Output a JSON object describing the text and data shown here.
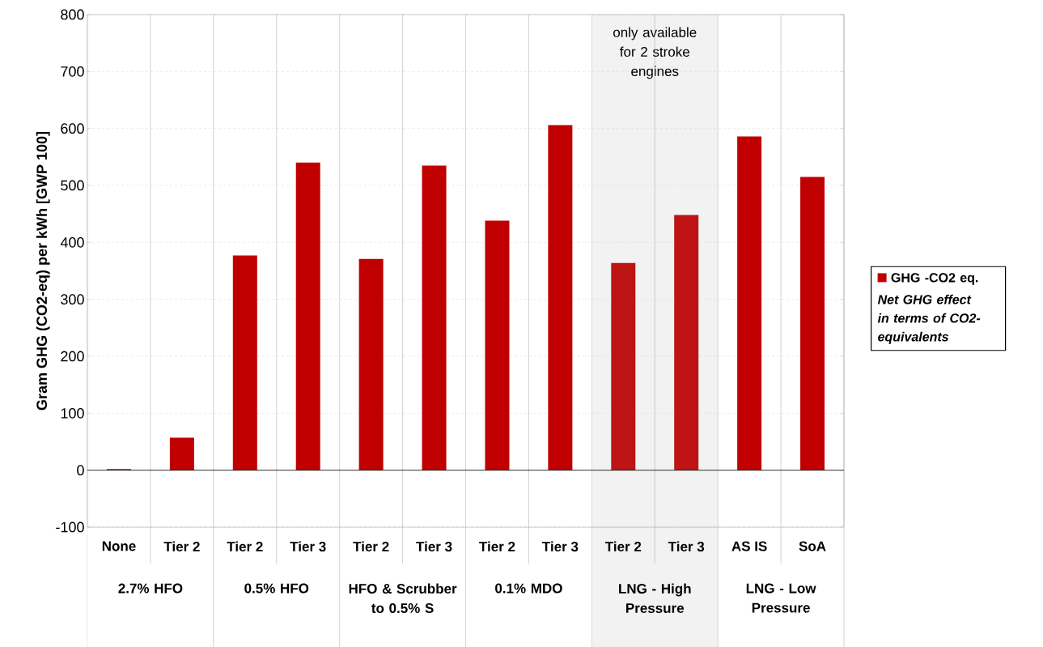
{
  "chart_data": {
    "type": "bar",
    "ylabel": "Gram GHG (CO2-eq) per kWh [GWP 100]",
    "categories": [
      "None",
      "Tier 2",
      "Tier 2",
      "Tier 3",
      "Tier 2",
      "Tier 3",
      "Tier 2",
      "Tier 3",
      "Tier 2",
      "Tier 3",
      "AS IS",
      "SoA"
    ],
    "series": [
      {
        "name": "GHG -CO2 eq.",
        "color": "#c00000",
        "colors": [
          "#c00000",
          "#c00000",
          "#c00000",
          "#c00000",
          "#c00000",
          "#c00000",
          "#c00000",
          "#c00000",
          "#be1414",
          "#be1414",
          "#c00000",
          "#c00000"
        ],
        "values": [
          2,
          57,
          377,
          540,
          371,
          535,
          438,
          606,
          364,
          448,
          586,
          515
        ]
      }
    ],
    "ylim": [
      -100,
      800
    ],
    "yticks": [
      -100,
      0,
      100,
      200,
      300,
      400,
      500,
      600,
      700,
      800
    ],
    "grid": "y",
    "legend": "right",
    "ref_lines": [
      {
        "axis": "y",
        "value": 0,
        "color": "#000000"
      }
    ],
    "annotations": [
      "2.7% HFO",
      "0.5% HFO",
      "HFO & Scrubber to 0.5% S",
      "0.1% MDO",
      "LNG - High Pressure",
      "LNG - Low Pressure",
      "Net GHG effect in terms of CO2-equivalents",
      "only available for 2 stroke engines"
    ]
  }
}
